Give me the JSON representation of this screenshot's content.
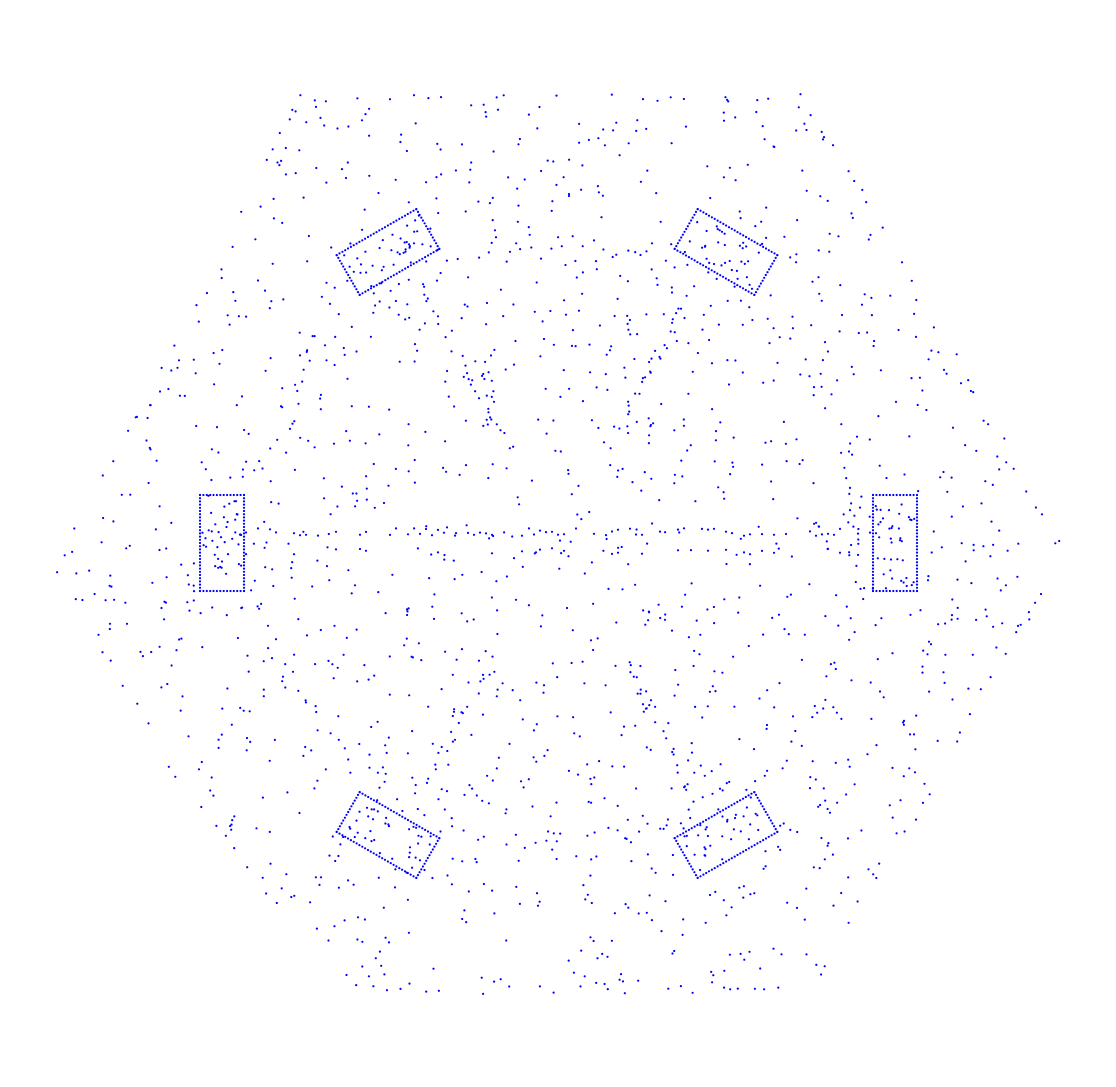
{
  "figure": {
    "kind": "point-cloud-scatter",
    "point_color": "#0000ff",
    "background": "#ffffff",
    "text": []
  },
  "chart_data": {
    "type": "scatter",
    "title": "",
    "xlabel": "",
    "ylabel": "",
    "axes_visible": false,
    "grid": false,
    "legend": "none",
    "series_color": "#0000ff",
    "description_of_structure": "",
    "notes": ""
  }
}
